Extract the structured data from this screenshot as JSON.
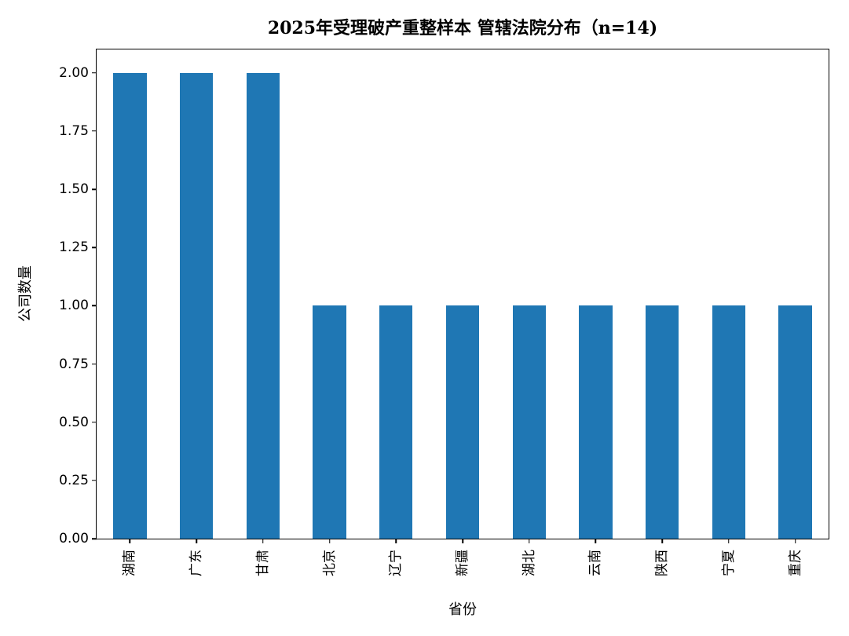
{
  "chart_data": {
    "type": "bar",
    "title": "2025年受理破产重整样本 管辖法院分布（n=14)",
    "xlabel": "省份",
    "ylabel": "公司数量",
    "categories": [
      "湖南",
      "广东",
      "甘肃",
      "北京",
      "辽宁",
      "新疆",
      "湖北",
      "云南",
      "陕西",
      "宁夏",
      "重庆"
    ],
    "values": [
      2,
      2,
      2,
      1,
      1,
      1,
      1,
      1,
      1,
      1,
      1
    ],
    "n_total": 14,
    "ylim": [
      0,
      2.1
    ],
    "yticks": [
      {
        "value": 0.0,
        "label": "0.00"
      },
      {
        "value": 0.25,
        "label": "0.25"
      },
      {
        "value": 0.5,
        "label": "0.50"
      },
      {
        "value": 0.75,
        "label": "0.75"
      },
      {
        "value": 1.0,
        "label": "1.00"
      },
      {
        "value": 1.25,
        "label": "1.25"
      },
      {
        "value": 1.5,
        "label": "1.50"
      },
      {
        "value": 1.75,
        "label": "1.75"
      },
      {
        "value": 2.0,
        "label": "2.00"
      }
    ],
    "bar_color": "#1f77b4",
    "bar_width_fraction": 0.5,
    "spine_color": "#000000",
    "background_color": "#ffffff",
    "grid": false,
    "legend": "none"
  }
}
